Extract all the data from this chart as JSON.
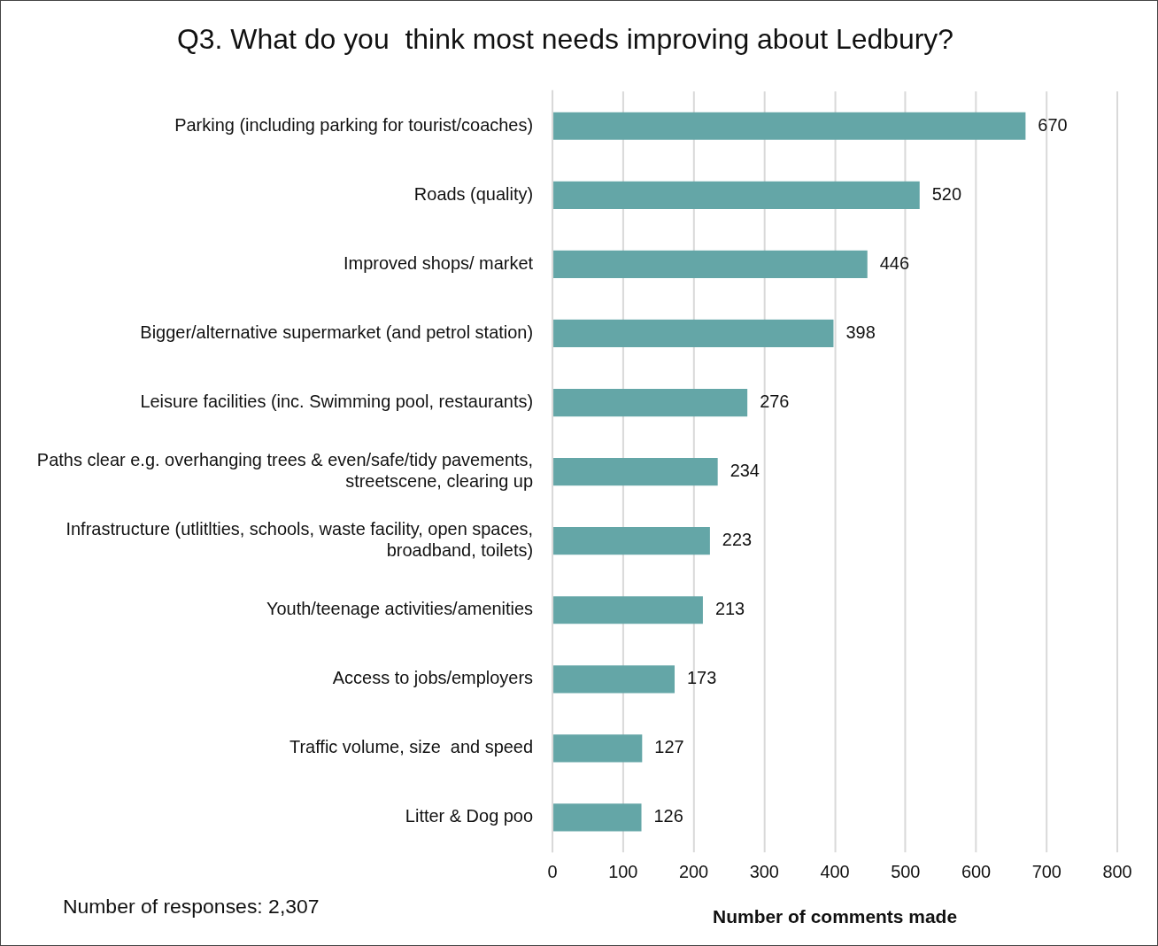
{
  "chart_data": {
    "type": "bar",
    "orientation": "horizontal",
    "title": "Q3. What do you  think most needs improving about Ledbury?",
    "xlabel": "Number of comments made",
    "categories": [
      "Parking (including parking for tourist/coaches)",
      "Roads (quality)",
      "Improved shops/ market",
      "Bigger/alternative supermarket (and petrol station)",
      "Leisure facilities (inc. Swimming pool, restaurants)",
      "Paths clear e.g. overhanging trees & even/safe/tidy pavements, streetscene, clearing up",
      "Infrastructure (utlitlties, schools, waste facility, open spaces, broadband, toilets)",
      "Youth/teenage activities/amenities",
      "Access to jobs/employers",
      "Traffic volume, size  and speed",
      "Litter & Dog poo"
    ],
    "values": [
      670,
      520,
      446,
      398,
      276,
      234,
      223,
      213,
      173,
      127,
      126
    ],
    "color": "#64a6a7",
    "xlim": [
      0,
      800
    ],
    "xticks": [
      0,
      100,
      200,
      300,
      400,
      500,
      600,
      700,
      800
    ],
    "grid": "x",
    "data_labels": true,
    "legend": false,
    "annotations": [
      "Number of responses: 2,307"
    ]
  }
}
